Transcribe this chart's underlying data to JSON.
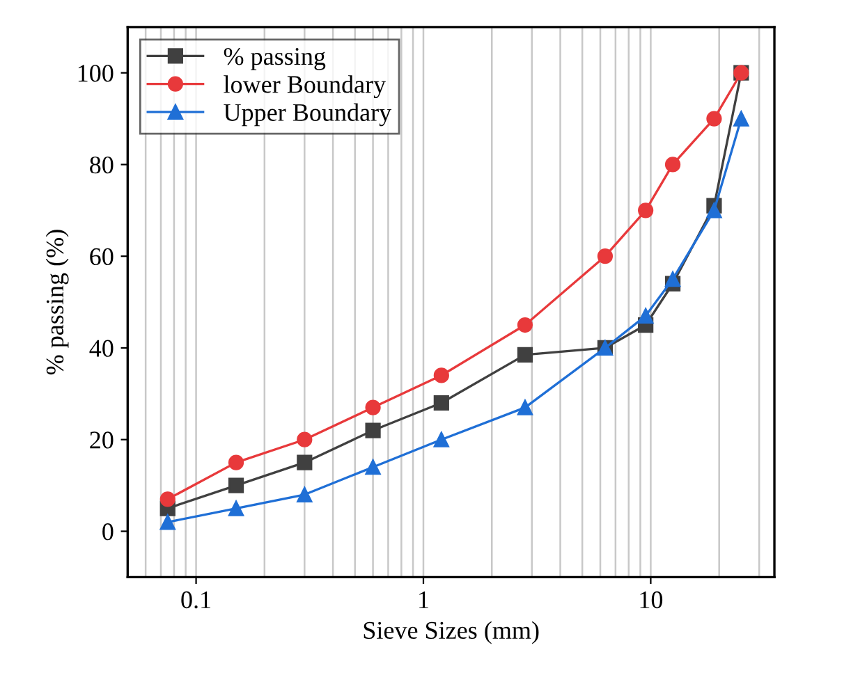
{
  "chart_data": {
    "type": "line",
    "xlabel": "Sieve Sizes (mm)",
    "ylabel": "% passing (%)",
    "x": [
      0.075,
      0.15,
      0.3,
      0.6,
      1.2,
      2.8,
      6.3,
      9.5,
      12.5,
      19,
      25
    ],
    "series": [
      {
        "name": "% passing",
        "color": "#404040",
        "marker": "square",
        "values": [
          5,
          10,
          15,
          22,
          28,
          38.5,
          40,
          45,
          54,
          71,
          100
        ]
      },
      {
        "name": "lower Boundary",
        "color": "#e8393b",
        "marker": "circle",
        "values": [
          7,
          15,
          20,
          27,
          34,
          45,
          60,
          70,
          80,
          90,
          100
        ]
      },
      {
        "name": "Upper Boundary",
        "color": "#1f6fd6",
        "marker": "triangle",
        "values": [
          2,
          5,
          8,
          14,
          20,
          27,
          40,
          47,
          55,
          70,
          90
        ]
      }
    ],
    "log": "x",
    "xlim": [
      0.05,
      35
    ],
    "xticks": [
      0.1,
      1,
      10
    ],
    "ylim": [
      -10,
      110
    ],
    "yticks": [
      0,
      20,
      40,
      60,
      80,
      100
    ],
    "grid": "x",
    "legend": "top left",
    "line_style": "solid"
  }
}
